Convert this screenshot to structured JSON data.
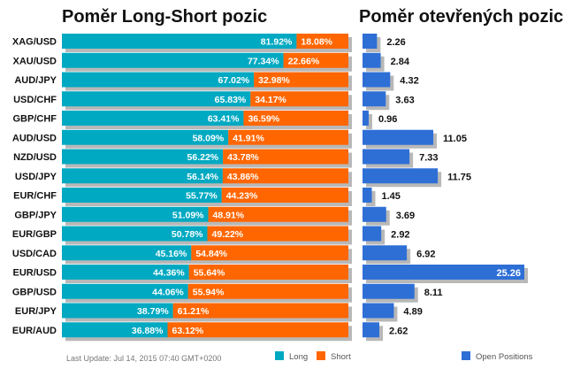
{
  "titles": {
    "left": "Poměr Long-Short pozic",
    "right": "Poměr otevřených pozic"
  },
  "footer": {
    "last_update": "Last Update: Jul 14, 2015 07:40 GMT+0200"
  },
  "legend": {
    "long": "Long",
    "short": "Short",
    "open": "Open Positions"
  },
  "colors": {
    "long": "#00A9C2",
    "short": "#FF6600",
    "open": "#2E6FD6",
    "shadow": "#B8B8B8"
  },
  "chart_data": [
    {
      "type": "bar",
      "orientation": "horizontal",
      "stacked": true,
      "title": "Poměr Long-Short pozic",
      "categories": [
        "XAG/USD",
        "XAU/USD",
        "AUD/JPY",
        "USD/CHF",
        "GBP/CHF",
        "AUD/USD",
        "NZD/USD",
        "USD/JPY",
        "EUR/CHF",
        "GBP/JPY",
        "EUR/GBP",
        "USD/CAD",
        "EUR/USD",
        "GBP/USD",
        "EUR/JPY",
        "EUR/AUD"
      ],
      "series": [
        {
          "name": "Long",
          "values": [
            81.92,
            77.34,
            67.02,
            65.83,
            63.41,
            58.09,
            56.22,
            56.14,
            55.77,
            51.09,
            50.78,
            45.16,
            44.36,
            44.06,
            38.79,
            36.88
          ]
        },
        {
          "name": "Short",
          "values": [
            18.08,
            22.66,
            32.98,
            34.17,
            36.59,
            41.91,
            43.78,
            43.86,
            44.23,
            48.91,
            49.22,
            54.84,
            55.64,
            55.94,
            61.21,
            63.12
          ]
        }
      ],
      "labels": {
        "long": [
          "81.92%",
          "77.34%",
          "67.02%",
          "65.83%",
          "63.41%",
          "58.09%",
          "56.22%",
          "56.14%",
          "55.77%",
          "51.09%",
          "50.78%",
          "45.16%",
          "44.36%",
          "44.06%",
          "38.79%",
          "36.88%"
        ],
        "short": [
          "18.08%",
          "22.66%",
          "32.98%",
          "34.17%",
          "36.59%",
          "41.91%",
          "43.78%",
          "43.86%",
          "44.23%",
          "48.91%",
          "49.22%",
          "54.84%",
          "55.64%",
          "55.94%",
          "61.21%",
          "63.12%"
        ]
      },
      "xlim": [
        0,
        100
      ],
      "legend": "bottom"
    },
    {
      "type": "bar",
      "orientation": "horizontal",
      "title": "Poměr otevřených pozic",
      "categories": [
        "XAG/USD",
        "XAU/USD",
        "AUD/JPY",
        "USD/CHF",
        "GBP/CHF",
        "AUD/USD",
        "NZD/USD",
        "USD/JPY",
        "EUR/CHF",
        "GBP/JPY",
        "EUR/GBP",
        "USD/CAD",
        "EUR/USD",
        "GBP/USD",
        "EUR/JPY",
        "EUR/AUD"
      ],
      "series": [
        {
          "name": "Open Positions",
          "values": [
            2.26,
            2.84,
            4.32,
            3.63,
            0.96,
            11.05,
            7.33,
            11.75,
            1.45,
            3.69,
            2.92,
            6.92,
            25.26,
            8.11,
            4.89,
            2.62
          ]
        }
      ],
      "labels": [
        "2.26",
        "2.84",
        "4.32",
        "3.63",
        "0.96",
        "11.05",
        "7.33",
        "11.75",
        "1.45",
        "3.69",
        "2.92",
        "6.92",
        "25.26",
        "8.11",
        "4.89",
        "2.62"
      ],
      "xlim": [
        0,
        25.26
      ],
      "legend": "bottom-right"
    }
  ]
}
